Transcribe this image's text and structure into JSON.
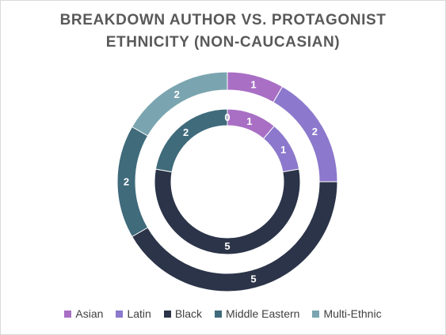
{
  "chart_data": {
    "type": "doughnut",
    "title_lines": [
      "BREAKDOWN AUTHOR VS. PROTAGONIST",
      "ETHNICITY (NON-CAUCASIAN)"
    ],
    "categories": [
      "Asian",
      "Latin",
      "Black",
      "Middle Eastern",
      "Multi-Ethnic"
    ],
    "colors": [
      "#a86fc4",
      "#8c78cc",
      "#2b3448",
      "#3f6b7b",
      "#7aa5b0"
    ],
    "series": [
      {
        "ring": "outer",
        "values": [
          1,
          2,
          5,
          2,
          2
        ]
      },
      {
        "ring": "inner",
        "values": [
          1,
          1,
          5,
          2,
          0
        ]
      }
    ],
    "data_labels": true,
    "legend_position": "bottom"
  }
}
